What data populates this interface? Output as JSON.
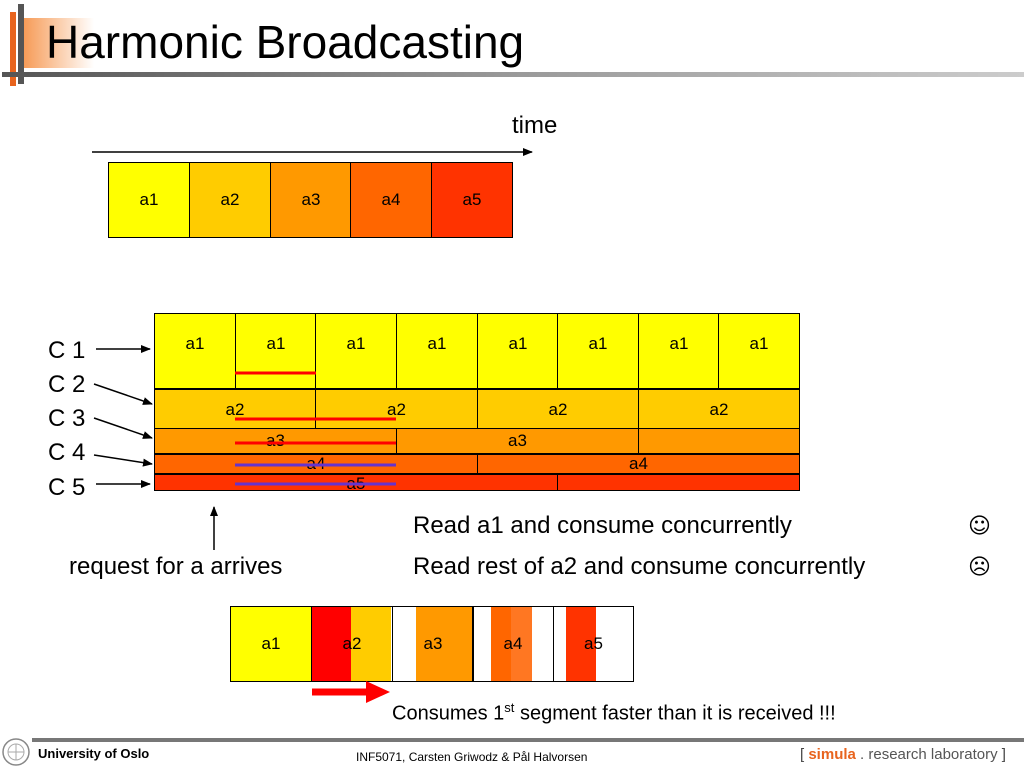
{
  "title": "Harmonic Broadcasting",
  "time_label": "time",
  "top_row": [
    "a1",
    "a2",
    "a3",
    "a4",
    "a5"
  ],
  "channels": {
    "labels": [
      "C 1",
      "C 2",
      "C 3",
      "C 4",
      "C 5"
    ],
    "c1": [
      "a1",
      "a1",
      "a1",
      "a1",
      "a1",
      "a1",
      "a1",
      "a1"
    ],
    "c2": [
      "a2",
      "a2",
      "a2",
      "a2"
    ],
    "c3": [
      "a3",
      "a3",
      ""
    ],
    "c4": [
      "a4",
      "a4"
    ],
    "c5": [
      "a5",
      ""
    ]
  },
  "request_label": "request for a arrives",
  "read_lines": [
    {
      "text": "Read a1 and consume concurrently",
      "emoticon": "☺"
    },
    {
      "text": "Read rest of a2 and consume concurrently",
      "emoticon": "☹"
    }
  ],
  "bottom_row": [
    "a1",
    "a2",
    "a3",
    "a4",
    "a5"
  ],
  "consumes": {
    "prefix": "Consumes 1",
    "sup": "st",
    "suffix": " segment faster than it is received !!!"
  },
  "footer": {
    "university": "University of Oslo",
    "course": "INF5071,  Carsten Griwodz & Pål Halvorsen",
    "lab_open": "[ ",
    "lab_simula": "simula",
    "lab_rest": " . research laboratory ",
    "lab_close": "]"
  },
  "colors": {
    "a1": "#ffff00",
    "a2": "#ffcc00",
    "a3": "#ff9900",
    "a4": "#ff6600",
    "a5": "#ff3300",
    "red": "#ff0000",
    "read_line_red": "#ff0000",
    "read_line_purple": "#6633cc"
  }
}
